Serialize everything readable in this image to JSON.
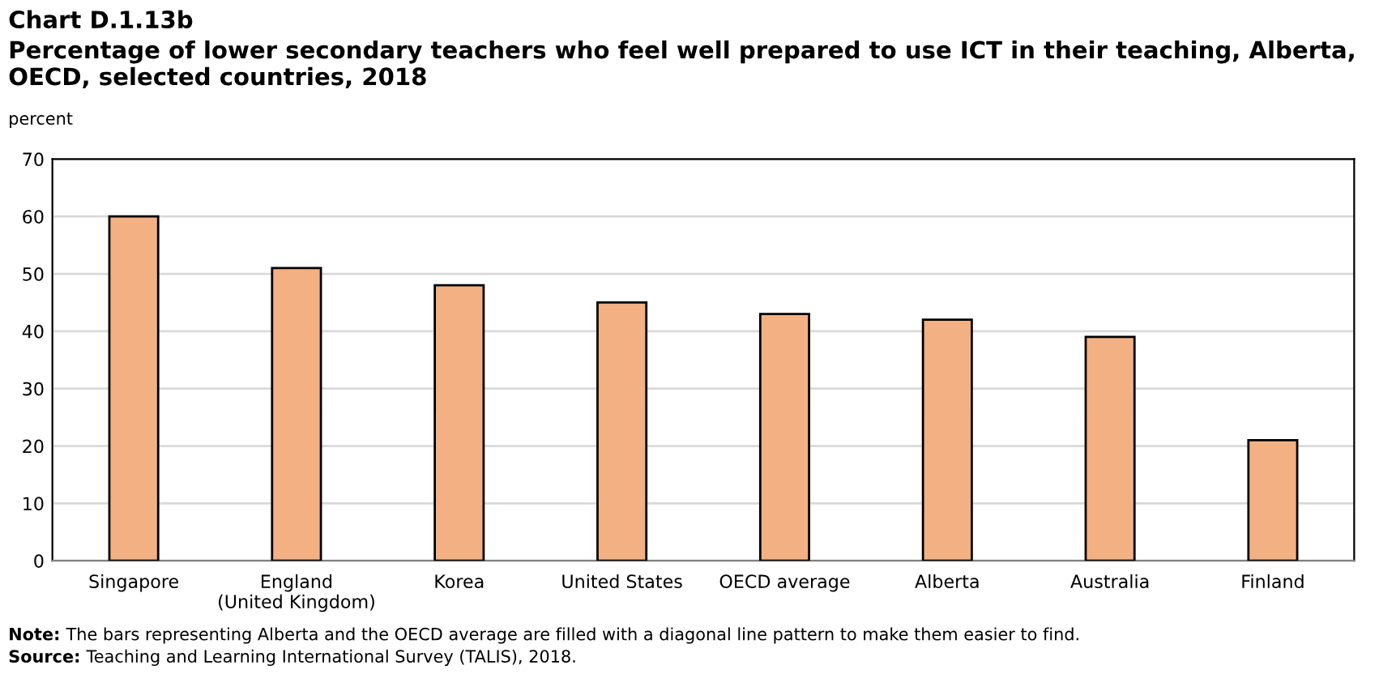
{
  "chart_data": {
    "type": "bar",
    "title": "Chart D.1.13b",
    "subtitle": "Percentage of lower secondary teachers who feel well prepared to use ICT in their teaching, Alberta, OECD, selected countries, 2018",
    "ylabel": "percent",
    "categories": [
      "Singapore",
      "England\n(United Kingdom)",
      "Korea",
      "United States",
      "OECD average",
      "Alberta",
      "Australia",
      "Finland"
    ],
    "values": [
      60,
      51,
      48,
      45,
      43,
      42,
      39,
      21
    ],
    "colors": [
      "#f3b183",
      "#f3b183",
      "#f3b183",
      "#f3b183",
      "#f3b183",
      "#f3b183",
      "#f3b183",
      "#f3b183"
    ],
    "ylim": [
      0,
      70
    ],
    "yticks": [
      0,
      10,
      20,
      30,
      40,
      50,
      60,
      70
    ],
    "grid": "y",
    "legend": false,
    "annotations": [
      "Note: The bars representing Alberta and the OECD average are filled with a diagonal line pattern to make them easier to find.",
      "Source: Teaching and Learning International Survey (TALIS), 2018."
    ]
  }
}
